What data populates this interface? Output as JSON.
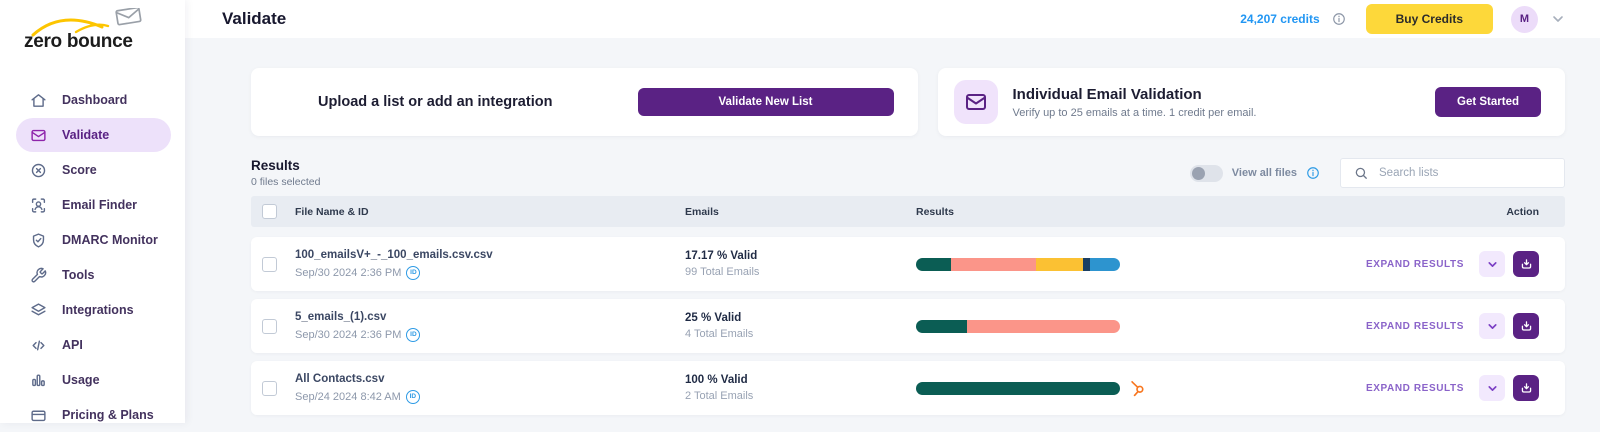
{
  "brand": {
    "name": "zero bounce"
  },
  "header": {
    "title": "Validate",
    "credits": "24,207 credits",
    "buy_credits_label": "Buy Credits",
    "avatar_initial": "M"
  },
  "sidebar": {
    "items": [
      {
        "label": "Dashboard",
        "icon": "home-icon",
        "active": false
      },
      {
        "label": "Validate",
        "icon": "envelope-icon",
        "active": true
      },
      {
        "label": "Score",
        "icon": "score-icon",
        "active": false
      },
      {
        "label": "Email Finder",
        "icon": "email-finder-icon",
        "active": false
      },
      {
        "label": "DMARC Monitor",
        "icon": "shield-icon",
        "active": false
      },
      {
        "label": "Tools",
        "icon": "wrench-icon",
        "active": false
      },
      {
        "label": "Integrations",
        "icon": "layers-icon",
        "active": false
      },
      {
        "label": "API",
        "icon": "code-icon",
        "active": false
      },
      {
        "label": "Usage",
        "icon": "bar-chart-icon",
        "active": false
      },
      {
        "label": "Pricing & Plans",
        "icon": "card-icon",
        "active": false
      }
    ]
  },
  "cards": {
    "upload": {
      "title": "Upload a list or add an integration",
      "button_label": "Validate New List"
    },
    "individual": {
      "title": "Individual Email Validation",
      "subtitle": "Verify up to 25 emails at a time. 1 credit per email.",
      "button_label": "Get Started",
      "icon": "envelope-icon"
    }
  },
  "results_section": {
    "title": "Results",
    "files_selected": "0 files selected",
    "view_all_label": "View all files",
    "search_placeholder": "Search lists"
  },
  "table": {
    "columns": [
      "File Name & ID",
      "Emails",
      "Results",
      "Action"
    ],
    "expand_label": "EXPAND RESULTS",
    "rows": [
      {
        "file": "100_emailsV+_-_100_emails.csv.csv",
        "date": "Sep/30 2024 2:36 PM",
        "valid": "17.17 % Valid",
        "total": "99 Total Emails",
        "segments": [
          {
            "color": "#0b5d54",
            "pct": 17.2
          },
          {
            "color": "#fb9589",
            "pct": 41.8
          },
          {
            "color": "#fbc133",
            "pct": 23.0
          },
          {
            "color": "#1b3f63",
            "pct": 3.3
          },
          {
            "color": "#2d94cf",
            "pct": 14.7
          }
        ],
        "hubspot": false
      },
      {
        "file": "5_emails_(1).csv",
        "date": "Sep/30 2024 2:36 PM",
        "valid": "25 % Valid",
        "total": "4 Total Emails",
        "segments": [
          {
            "color": "#0b5d54",
            "pct": 25
          },
          {
            "color": "#fb9589",
            "pct": 75
          }
        ],
        "hubspot": false
      },
      {
        "file": "All Contacts.csv",
        "date": "Sep/24 2024 8:42 AM",
        "valid": "100 % Valid",
        "total": "2 Total Emails",
        "segments": [
          {
            "color": "#0b5d54",
            "pct": 100
          }
        ],
        "hubspot": true
      }
    ]
  },
  "colors": {
    "accent_purple": "#5a2284",
    "active_nav_bg": "#ede1fa",
    "accent_yellow": "#fdd83a",
    "credits_blue": "#2196f3",
    "id_badge_blue": "#2e9be5",
    "hubspot_orange": "#f8761f",
    "bar_teal": "#0b5d54",
    "bar_salmon": "#fb9589",
    "bar_yellow": "#fbc133",
    "bar_navy": "#1b3f63",
    "bar_blue": "#2d94cf"
  }
}
